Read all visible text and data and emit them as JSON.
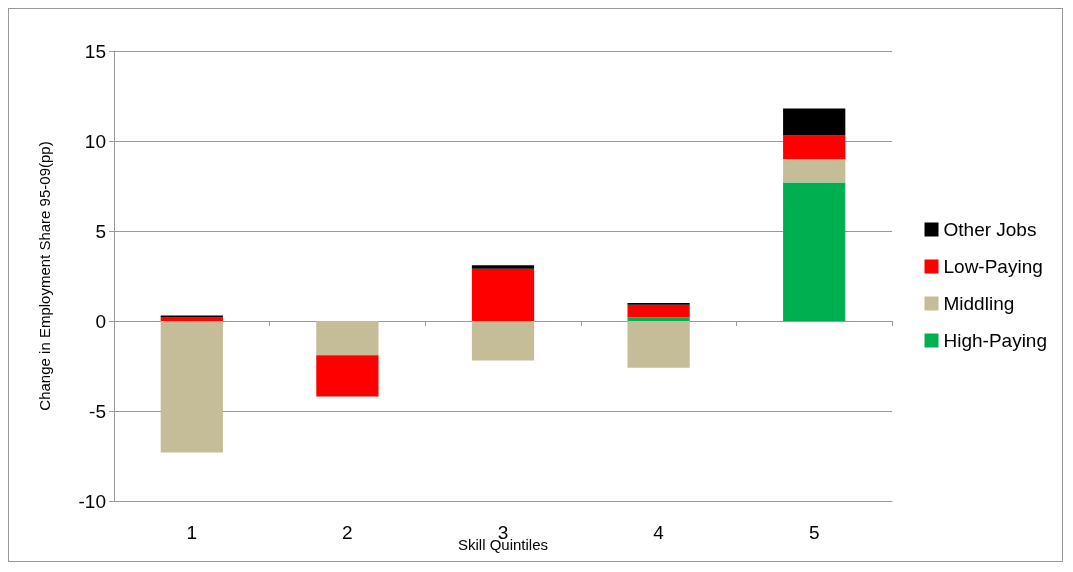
{
  "chart_data": {
    "type": "bar",
    "stacked": true,
    "xlabel": "Skill Quintiles",
    "ylabel": "Change in Employment Share 95-09(pp)",
    "categories": [
      "1",
      "2",
      "3",
      "4",
      "5"
    ],
    "series": [
      {
        "name": "High-Paying",
        "color": "#00b050",
        "values": [
          0,
          0,
          0,
          0.2,
          7.7
        ]
      },
      {
        "name": "Middling",
        "color": "#c4bd97",
        "values": [
          -7.3,
          -1.9,
          -2.2,
          -2.6,
          1.3
        ]
      },
      {
        "name": "Low-Paying",
        "color": "#ff0000",
        "values": [
          0.2,
          -2.3,
          2.9,
          0.7,
          1.3
        ]
      },
      {
        "name": "Other Jobs",
        "color": "#000000",
        "values": [
          0.1,
          0,
          0.2,
          0.1,
          1.5
        ]
      }
    ],
    "ylim": [
      -10,
      15
    ],
    "yticks": [
      -10,
      -5,
      0,
      5,
      10,
      15
    ],
    "grid": "y",
    "legend": "right"
  }
}
